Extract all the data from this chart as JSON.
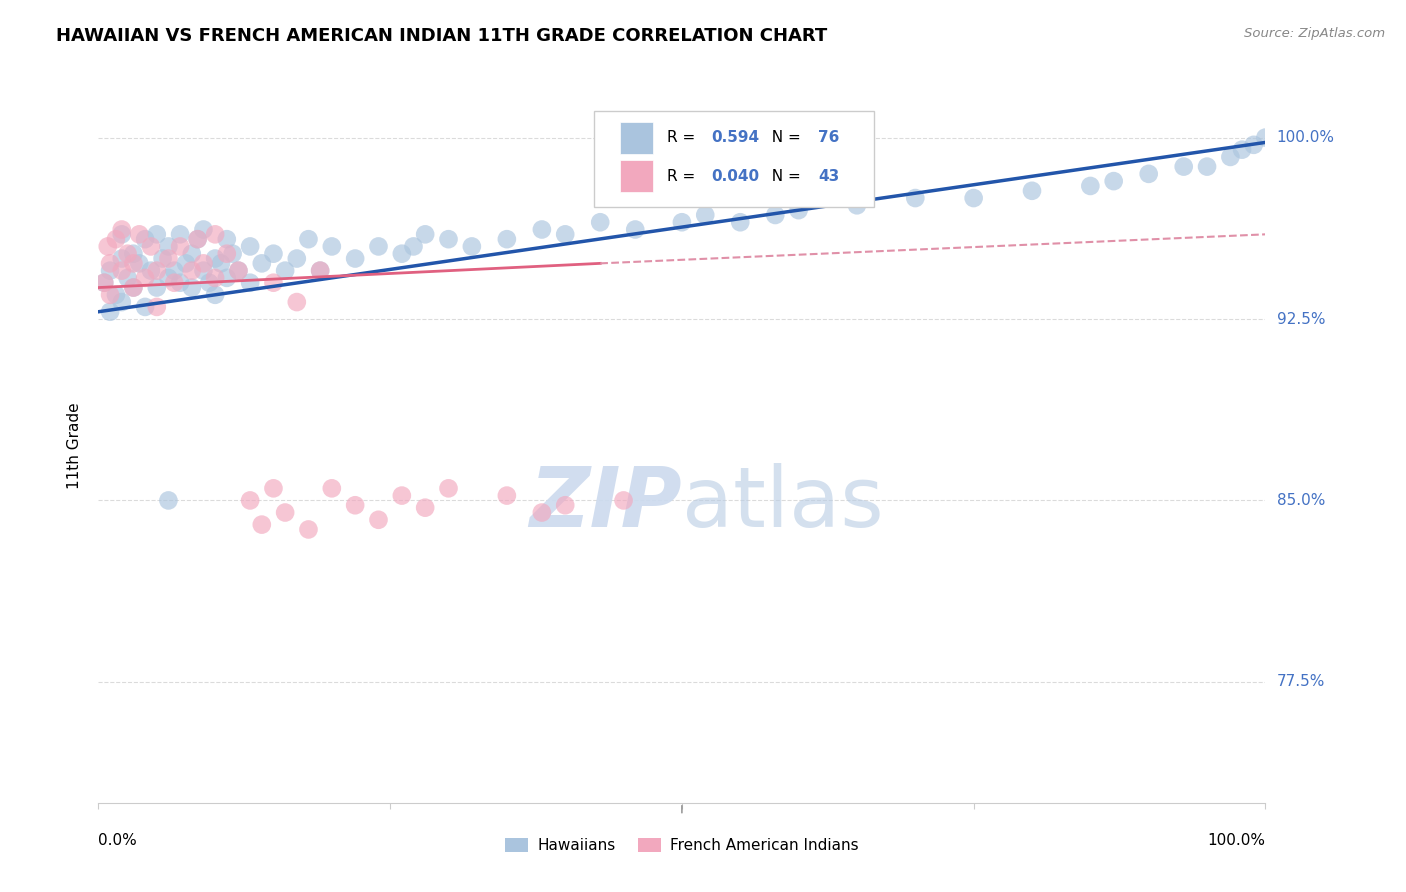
{
  "title": "HAWAIIAN VS FRENCH AMERICAN INDIAN 11TH GRADE CORRELATION CHART",
  "source": "Source: ZipAtlas.com",
  "ylabel": "11th Grade",
  "ytick_values": [
    0.775,
    0.85,
    0.925,
    1.0
  ],
  "ytick_labels": [
    "77.5%",
    "85.0%",
    "92.5%",
    "100.0%"
  ],
  "xlim": [
    0.0,
    1.0
  ],
  "ylim": [
    0.725,
    1.02
  ],
  "hawaiian_color": "#aac4de",
  "french_color": "#f2a8be",
  "trend_blue_color": "#2255aa",
  "trend_pink_solid_color": "#e06080",
  "trend_pink_dash_color": "#e090a8",
  "watermark_color": "#ccdaee",
  "grid_color": "#cccccc",
  "right_label_color": "#4472c4",
  "hawaiian_x": [
    0.005,
    0.01,
    0.01,
    0.015,
    0.02,
    0.02,
    0.02,
    0.025,
    0.03,
    0.03,
    0.035,
    0.04,
    0.04,
    0.045,
    0.05,
    0.05,
    0.055,
    0.06,
    0.06,
    0.065,
    0.07,
    0.07,
    0.075,
    0.08,
    0.08,
    0.085,
    0.09,
    0.09,
    0.095,
    0.1,
    0.1,
    0.105,
    0.11,
    0.11,
    0.115,
    0.12,
    0.13,
    0.13,
    0.14,
    0.15,
    0.16,
    0.17,
    0.18,
    0.19,
    0.2,
    0.22,
    0.24,
    0.26,
    0.27,
    0.28,
    0.3,
    0.32,
    0.35,
    0.38,
    0.4,
    0.43,
    0.46,
    0.5,
    0.52,
    0.55,
    0.58,
    0.6,
    0.65,
    0.7,
    0.75,
    0.8,
    0.85,
    0.87,
    0.9,
    0.93,
    0.95,
    0.97,
    0.98,
    0.99,
    1.0,
    0.06
  ],
  "hawaiian_y": [
    0.94,
    0.928,
    0.945,
    0.935,
    0.95,
    0.96,
    0.932,
    0.942,
    0.952,
    0.938,
    0.948,
    0.958,
    0.93,
    0.945,
    0.938,
    0.96,
    0.95,
    0.942,
    0.955,
    0.945,
    0.94,
    0.96,
    0.948,
    0.952,
    0.938,
    0.958,
    0.945,
    0.962,
    0.94,
    0.95,
    0.935,
    0.948,
    0.942,
    0.958,
    0.952,
    0.945,
    0.94,
    0.955,
    0.948,
    0.952,
    0.945,
    0.95,
    0.958,
    0.945,
    0.955,
    0.95,
    0.955,
    0.952,
    0.955,
    0.96,
    0.958,
    0.955,
    0.958,
    0.962,
    0.96,
    0.965,
    0.962,
    0.965,
    0.968,
    0.965,
    0.968,
    0.97,
    0.972,
    0.975,
    0.975,
    0.978,
    0.98,
    0.982,
    0.985,
    0.988,
    0.988,
    0.992,
    0.995,
    0.997,
    1.0,
    0.85
  ],
  "french_x": [
    0.005,
    0.008,
    0.01,
    0.01,
    0.015,
    0.02,
    0.02,
    0.025,
    0.03,
    0.03,
    0.035,
    0.04,
    0.045,
    0.05,
    0.05,
    0.06,
    0.065,
    0.07,
    0.08,
    0.085,
    0.09,
    0.1,
    0.1,
    0.11,
    0.12,
    0.13,
    0.14,
    0.15,
    0.16,
    0.18,
    0.2,
    0.22,
    0.24,
    0.26,
    0.28,
    0.3,
    0.35,
    0.38,
    0.4,
    0.45,
    0.15,
    0.17,
    0.19
  ],
  "french_y": [
    0.94,
    0.955,
    0.948,
    0.935,
    0.958,
    0.945,
    0.962,
    0.952,
    0.938,
    0.948,
    0.96,
    0.942,
    0.955,
    0.945,
    0.93,
    0.95,
    0.94,
    0.955,
    0.945,
    0.958,
    0.948,
    0.942,
    0.96,
    0.952,
    0.945,
    0.85,
    0.84,
    0.855,
    0.845,
    0.838,
    0.855,
    0.848,
    0.842,
    0.852,
    0.847,
    0.855,
    0.852,
    0.845,
    0.848,
    0.85,
    0.94,
    0.932,
    0.945
  ],
  "trend_haw_x0": 0.0,
  "trend_haw_x1": 1.0,
  "trend_haw_y0": 0.928,
  "trend_haw_y1": 0.998,
  "trend_fr_solid_x0": 0.0,
  "trend_fr_solid_x1": 0.43,
  "trend_fr_solid_y0": 0.938,
  "trend_fr_solid_y1": 0.948,
  "trend_fr_dash_x0": 0.43,
  "trend_fr_dash_x1": 1.0,
  "trend_fr_dash_y0": 0.948,
  "trend_fr_dash_y1": 0.96
}
